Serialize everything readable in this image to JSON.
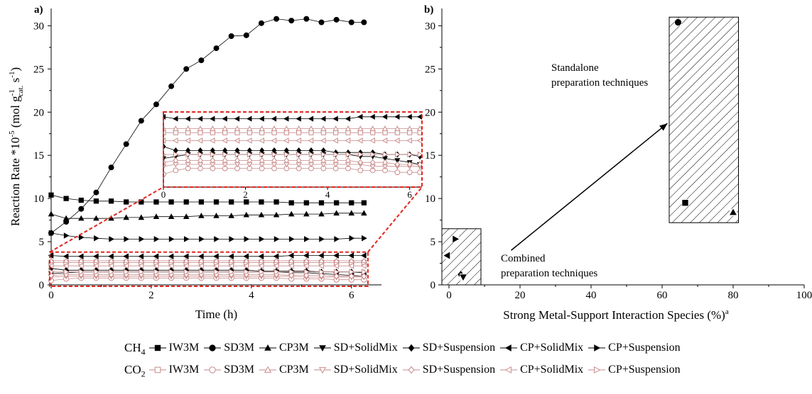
{
  "chart_data": [
    {
      "id": "a",
      "panel_label": "a)",
      "type": "line",
      "xlabel": "Time (h)",
      "ylabel_main": "Reaction Rate *10",
      "ylabel_exp": "-5",
      "ylabel_unit": "(mol g",
      "ylabel_unit_sup": "-1",
      "ylabel_unit_sub": "cat.",
      "ylabel_unit_tail": " s",
      "ylabel_unit_tail_sup": "-1",
      "ylabel_close": ")",
      "xlim": [
        0,
        6.6
      ],
      "ylim": [
        0,
        32
      ],
      "xticks": [
        "0",
        "2",
        "4",
        "6"
      ],
      "yticks": [
        "0",
        "5",
        "10",
        "15",
        "20",
        "25",
        "30"
      ],
      "x": [
        0,
        0.3,
        0.6,
        0.9,
        1.2,
        1.5,
        1.8,
        2.1,
        2.4,
        2.7,
        3.0,
        3.3,
        3.6,
        3.9,
        4.2,
        4.5,
        4.8,
        5.1,
        5.4,
        5.7,
        6.0,
        6.25
      ],
      "series": [
        {
          "gas": "CH4",
          "name": "SD3M",
          "marker": "circle",
          "values": [
            6.0,
            7.3,
            8.8,
            10.7,
            13.6,
            16.3,
            19.0,
            20.9,
            23.0,
            25.0,
            26.0,
            27.4,
            28.8,
            28.9,
            30.3,
            30.8,
            30.6,
            30.8,
            30.4,
            30.7,
            30.4,
            30.4
          ]
        },
        {
          "gas": "CH4",
          "name": "IW3M",
          "marker": "square",
          "values": [
            10.4,
            10.0,
            9.8,
            9.7,
            9.7,
            9.6,
            9.6,
            9.6,
            9.6,
            9.6,
            9.6,
            9.6,
            9.6,
            9.6,
            9.6,
            9.6,
            9.5,
            9.5,
            9.5,
            9.5,
            9.5,
            9.5
          ]
        },
        {
          "gas": "CH4",
          "name": "CP3M",
          "marker": "triangle-up",
          "values": [
            8.2,
            7.7,
            7.7,
            7.7,
            7.7,
            7.8,
            7.8,
            7.9,
            7.9,
            7.9,
            8.0,
            8.0,
            8.0,
            8.1,
            8.1,
            8.1,
            8.2,
            8.2,
            8.2,
            8.3,
            8.3,
            8.3
          ]
        },
        {
          "gas": "CH4",
          "name": "CP+Suspension",
          "marker": "triangle-right",
          "values": [
            6.0,
            5.7,
            5.5,
            5.4,
            5.3,
            5.3,
            5.3,
            5.3,
            5.3,
            5.3,
            5.3,
            5.3,
            5.3,
            5.3,
            5.3,
            5.3,
            5.3,
            5.3,
            5.3,
            5.3,
            5.4,
            5.4
          ]
        },
        {
          "gas": "CH4",
          "name": "CP+SolidMix",
          "marker": "triangle-left",
          "values": [
            3.4,
            3.3,
            3.3,
            3.3,
            3.3,
            3.3,
            3.3,
            3.3,
            3.3,
            3.3,
            3.3,
            3.3,
            3.3,
            3.3,
            3.3,
            3.3,
            3.4,
            3.4,
            3.4,
            3.4,
            3.4,
            3.4
          ]
        },
        {
          "gas": "CH4",
          "name": "SD+Suspension",
          "marker": "diamond",
          "values": [
            1.9,
            1.7,
            1.7,
            1.7,
            1.7,
            1.7,
            1.7,
            1.7,
            1.7,
            1.7,
            1.7,
            1.7,
            1.7,
            1.7,
            1.6,
            1.6,
            1.6,
            1.6,
            1.5,
            1.5,
            1.5,
            1.4
          ]
        },
        {
          "gas": "CH4",
          "name": "SD+SolidMix",
          "marker": "triangle-down",
          "values": [
            1.3,
            1.4,
            1.5,
            1.5,
            1.5,
            1.5,
            1.5,
            1.5,
            1.5,
            1.5,
            1.5,
            1.5,
            1.5,
            1.5,
            1.5,
            1.5,
            1.4,
            1.4,
            1.3,
            1.2,
            1.1,
            1.0
          ]
        },
        {
          "gas": "CO2",
          "name": "IW3M",
          "marker": "square-open",
          "values": [
            2.6,
            2.6,
            2.6,
            2.6,
            2.6,
            2.6,
            2.6,
            2.6,
            2.6,
            2.6,
            2.6,
            2.6,
            2.6,
            2.6,
            2.6,
            2.6,
            2.6,
            2.6,
            2.6,
            2.6,
            2.6,
            2.6
          ]
        },
        {
          "gas": "CO2",
          "name": "SD3M",
          "marker": "circle-open",
          "values": [
            0.5,
            0.7,
            0.8,
            0.8,
            0.8,
            0.8,
            0.8,
            0.8,
            0.8,
            0.8,
            0.8,
            0.8,
            0.8,
            0.8,
            0.8,
            0.8,
            0.7,
            0.7,
            0.7,
            0.6,
            0.6,
            0.6
          ]
        },
        {
          "gas": "CO2",
          "name": "CP3M",
          "marker": "triangle-up-open",
          "values": [
            2.8,
            2.8,
            2.8,
            2.8,
            2.8,
            2.8,
            2.8,
            2.8,
            2.8,
            2.8,
            2.8,
            2.8,
            2.8,
            2.8,
            2.8,
            2.8,
            2.8,
            2.8,
            2.8,
            2.8,
            2.8,
            2.8
          ]
        },
        {
          "gas": "CO2",
          "name": "SD+SolidMix",
          "marker": "triangle-down-open",
          "values": [
            0.9,
            1.0,
            1.0,
            1.0,
            1.0,
            1.0,
            1.0,
            1.0,
            1.0,
            1.0,
            1.0,
            1.0,
            1.0,
            1.0,
            1.0,
            1.0,
            1.0,
            0.9,
            0.9,
            0.9,
            0.9,
            0.9
          ]
        },
        {
          "gas": "CO2",
          "name": "SD+Suspension",
          "marker": "diamond-open",
          "values": [
            1.1,
            1.2,
            1.2,
            1.2,
            1.2,
            1.2,
            1.2,
            1.2,
            1.2,
            1.2,
            1.2,
            1.2,
            1.2,
            1.2,
            1.2,
            1.2,
            1.1,
            1.1,
            1.1,
            1.0,
            1.0,
            1.0
          ]
        },
        {
          "gas": "CO2",
          "name": "CP+SolidMix",
          "marker": "triangle-left-open",
          "values": [
            2.2,
            2.2,
            2.2,
            2.2,
            2.2,
            2.2,
            2.2,
            2.2,
            2.2,
            2.2,
            2.2,
            2.2,
            2.2,
            2.2,
            2.2,
            2.2,
            2.2,
            2.2,
            2.2,
            2.2,
            2.2,
            2.2
          ]
        },
        {
          "gas": "CO2",
          "name": "CP+Suspension",
          "marker": "triangle-right-open",
          "values": [
            1.5,
            1.5,
            1.5,
            1.5,
            1.5,
            1.5,
            1.5,
            1.5,
            1.5,
            1.5,
            1.5,
            1.5,
            1.5,
            1.5,
            1.5,
            1.5,
            1.5,
            1.5,
            1.5,
            1.5,
            1.5,
            1.5
          ]
        }
      ],
      "inset": {
        "source_region": {
          "xlim": [
            0,
            6.3
          ],
          "ylim": [
            0,
            3.8
          ]
        },
        "xlim": [
          0,
          6.3
        ],
        "xticks": [
          "0",
          "2",
          "4",
          "6"
        ],
        "zoom_range": [
          0,
          3.5
        ],
        "border_color": "#e0271f"
      }
    },
    {
      "id": "b",
      "panel_label": "b)",
      "type": "scatter",
      "xlabel": "Strong Metal-Support Interaction Species (%)",
      "xlabel_sup": "a",
      "xlim": [
        -2,
        100
      ],
      "ylim": [
        0,
        32
      ],
      "xticks": [
        "0",
        "20",
        "40",
        "60",
        "80",
        "100"
      ],
      "yticks": [
        "0",
        "5",
        "10",
        "15",
        "20",
        "25",
        "30"
      ],
      "points": [
        {
          "name": "SD3M",
          "marker": "circle",
          "x": 64.5,
          "y": 30.4
        },
        {
          "name": "IW3M",
          "marker": "square",
          "x": 66.5,
          "y": 9.5
        },
        {
          "name": "CP3M",
          "marker": "triangle-up",
          "x": 80.0,
          "y": 8.4
        },
        {
          "name": "CP+Suspension",
          "marker": "triangle-right",
          "x": 1.8,
          "y": 5.3
        },
        {
          "name": "CP+SolidMix",
          "marker": "triangle-left",
          "x": -0.5,
          "y": 3.4
        },
        {
          "name": "SD+Suspension",
          "marker": "diamond",
          "x": 3.3,
          "y": 1.2
        },
        {
          "name": "SD+SolidMix",
          "marker": "triangle-down",
          "x": 4.0,
          "y": 0.9
        }
      ],
      "boxes": [
        {
          "name": "standalone",
          "x0": 62,
          "x1": 81.5,
          "y0": 7.2,
          "y1": 31.0
        },
        {
          "name": "combined",
          "x0": -2,
          "x1": 9,
          "y0": 0,
          "y1": 6.5
        }
      ],
      "arrow": {
        "from": [
          17.5,
          4.0
        ],
        "to": [
          61.5,
          18.7
        ]
      },
      "annotations": {
        "standalone_line1": "Standalone",
        "standalone_line2": "preparation techniques",
        "combined_line1": "Combined",
        "combined_line2": "preparation techniques"
      }
    }
  ],
  "legend": {
    "ch4_label": "CH",
    "ch4_sub": "4",
    "co2_label": "CO",
    "co2_sub": "2",
    "names": [
      "IW3M",
      "SD3M",
      "CP3M",
      "SD+SolidMix",
      "SD+Suspension",
      "CP+SolidMix",
      "CP+Suspension"
    ],
    "ch4_markers": [
      "square",
      "circle",
      "triangle-up",
      "triangle-down",
      "diamond",
      "triangle-left",
      "triangle-right"
    ],
    "co2_markers": [
      "square-open",
      "circle-open",
      "triangle-up-open",
      "triangle-down-open",
      "diamond-open",
      "triangle-left-open",
      "triangle-right-open"
    ]
  },
  "colors": {
    "ch4": "#000000",
    "co2": "#c98a8a",
    "zoom_box": "#e0271f",
    "arrow": "#000000"
  }
}
